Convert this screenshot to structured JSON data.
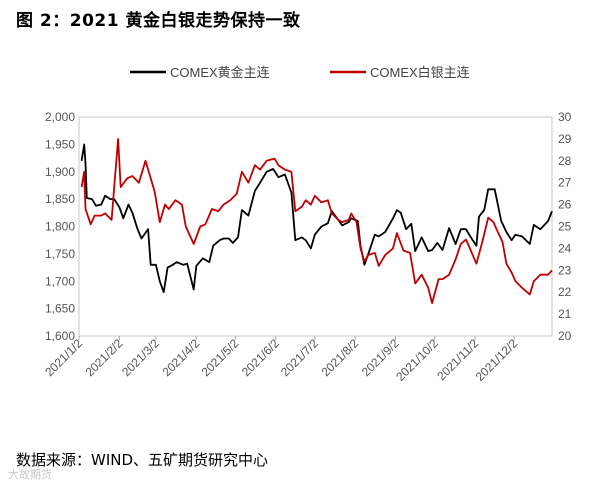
{
  "figure_title": "图 2：2021 黄金白银走势保持一致",
  "source_text": "数据来源：WIND、五矿期货研究中心",
  "watermark_text": "大故期货",
  "chart_data": {
    "type": "line",
    "title": "",
    "legend_position": "top",
    "grid": false,
    "x_tick_labels": [
      "2021/1/2",
      "2021/2/2",
      "2021/3/2",
      "2021/4/2",
      "2021/5/2",
      "2021/6/2",
      "2021/7/2",
      "2021/8/2",
      "2021/9/2",
      "2021/10/2",
      "2021/11/2",
      "2021/12/2"
    ],
    "x_range": [
      "2021-01-02",
      "2021-12-31"
    ],
    "y_left": {
      "ylim": [
        1600,
        2000
      ],
      "ticks": [
        "1,600",
        "1,650",
        "1,700",
        "1,750",
        "1,800",
        "1,850",
        "1,900",
        "1,950",
        "2,000"
      ]
    },
    "y_right": {
      "ylim": [
        20,
        30
      ],
      "ticks": [
        "20",
        "21",
        "22",
        "23",
        "24",
        "25",
        "26",
        "27",
        "28",
        "29",
        "30"
      ]
    },
    "series": [
      {
        "name": "COMEX黄金主连",
        "axis": "left",
        "color": "#000000",
        "points": [
          [
            "2021-01-04",
            1920
          ],
          [
            "2021-01-06",
            1950
          ],
          [
            "2021-01-07",
            1915
          ],
          [
            "2021-01-08",
            1852
          ],
          [
            "2021-01-12",
            1850
          ],
          [
            "2021-01-15",
            1838
          ],
          [
            "2021-01-19",
            1840
          ],
          [
            "2021-01-22",
            1856
          ],
          [
            "2021-01-26",
            1850
          ],
          [
            "2021-01-29",
            1850
          ],
          [
            "2021-02-02",
            1835
          ],
          [
            "2021-02-05",
            1815
          ],
          [
            "2021-02-09",
            1840
          ],
          [
            "2021-02-12",
            1825
          ],
          [
            "2021-02-16",
            1795
          ],
          [
            "2021-02-19",
            1778
          ],
          [
            "2021-02-24",
            1795
          ],
          [
            "2021-02-26",
            1730
          ],
          [
            "2021-03-02",
            1730
          ],
          [
            "2021-03-05",
            1700
          ],
          [
            "2021-03-08",
            1680
          ],
          [
            "2021-03-11",
            1725
          ],
          [
            "2021-03-15",
            1730
          ],
          [
            "2021-03-18",
            1735
          ],
          [
            "2021-03-23",
            1730
          ],
          [
            "2021-03-26",
            1732
          ],
          [
            "2021-03-31",
            1685
          ],
          [
            "2021-04-02",
            1728
          ],
          [
            "2021-04-07",
            1742
          ],
          [
            "2021-04-12",
            1735
          ],
          [
            "2021-04-15",
            1765
          ],
          [
            "2021-04-20",
            1775
          ],
          [
            "2021-04-23",
            1778
          ],
          [
            "2021-04-27",
            1778
          ],
          [
            "2021-04-30",
            1770
          ],
          [
            "2021-05-04",
            1780
          ],
          [
            "2021-05-07",
            1830
          ],
          [
            "2021-05-12",
            1820
          ],
          [
            "2021-05-17",
            1865
          ],
          [
            "2021-05-21",
            1880
          ],
          [
            "2021-05-26",
            1900
          ],
          [
            "2021-05-31",
            1905
          ],
          [
            "2021-06-04",
            1890
          ],
          [
            "2021-06-09",
            1895
          ],
          [
            "2021-06-14",
            1862
          ],
          [
            "2021-06-17",
            1775
          ],
          [
            "2021-06-22",
            1780
          ],
          [
            "2021-06-25",
            1775
          ],
          [
            "2021-06-29",
            1760
          ],
          [
            "2021-07-02",
            1785
          ],
          [
            "2021-07-07",
            1800
          ],
          [
            "2021-07-12",
            1806
          ],
          [
            "2021-07-15",
            1828
          ],
          [
            "2021-07-20",
            1812
          ],
          [
            "2021-07-23",
            1802
          ],
          [
            "2021-07-28",
            1808
          ],
          [
            "2021-07-30",
            1815
          ],
          [
            "2021-08-04",
            1810
          ],
          [
            "2021-08-06",
            1765
          ],
          [
            "2021-08-09",
            1730
          ],
          [
            "2021-08-12",
            1750
          ],
          [
            "2021-08-17",
            1785
          ],
          [
            "2021-08-20",
            1782
          ],
          [
            "2021-08-25",
            1790
          ],
          [
            "2021-08-31",
            1815
          ],
          [
            "2021-09-03",
            1830
          ],
          [
            "2021-09-06",
            1825
          ],
          [
            "2021-09-10",
            1795
          ],
          [
            "2021-09-14",
            1805
          ],
          [
            "2021-09-17",
            1755
          ],
          [
            "2021-09-22",
            1780
          ],
          [
            "2021-09-27",
            1755
          ],
          [
            "2021-09-30",
            1757
          ],
          [
            "2021-10-04",
            1770
          ],
          [
            "2021-10-08",
            1757
          ],
          [
            "2021-10-13",
            1797
          ],
          [
            "2021-10-18",
            1768
          ],
          [
            "2021-10-22",
            1795
          ],
          [
            "2021-10-26",
            1795
          ],
          [
            "2021-10-29",
            1783
          ],
          [
            "2021-11-03",
            1765
          ],
          [
            "2021-11-05",
            1818
          ],
          [
            "2021-11-09",
            1830
          ],
          [
            "2021-11-12",
            1868
          ],
          [
            "2021-11-17",
            1868
          ],
          [
            "2021-11-22",
            1810
          ],
          [
            "2021-11-26",
            1790
          ],
          [
            "2021-11-30",
            1775
          ],
          [
            "2021-12-03",
            1785
          ],
          [
            "2021-12-08",
            1782
          ],
          [
            "2021-12-14",
            1768
          ],
          [
            "2021-12-17",
            1803
          ],
          [
            "2021-12-22",
            1795
          ],
          [
            "2021-12-28",
            1810
          ],
          [
            "2021-12-31",
            1828
          ]
        ]
      },
      {
        "name": "COMEX白银主连",
        "axis": "right",
        "color": "#c00000",
        "points": [
          [
            "2021-01-04",
            26.8
          ],
          [
            "2021-01-06",
            27.5
          ],
          [
            "2021-01-07",
            25.8
          ],
          [
            "2021-01-11",
            25.1
          ],
          [
            "2021-01-14",
            25.5
          ],
          [
            "2021-01-19",
            25.5
          ],
          [
            "2021-01-22",
            25.6
          ],
          [
            "2021-01-27",
            25.3
          ],
          [
            "2021-01-29",
            26.8
          ],
          [
            "2021-02-01",
            29.0
          ],
          [
            "2021-02-03",
            26.8
          ],
          [
            "2021-02-08",
            27.2
          ],
          [
            "2021-02-12",
            27.3
          ],
          [
            "2021-02-17",
            27.0
          ],
          [
            "2021-02-22",
            28.0
          ],
          [
            "2021-02-25",
            27.4
          ],
          [
            "2021-03-01",
            26.6
          ],
          [
            "2021-03-05",
            25.2
          ],
          [
            "2021-03-09",
            26.0
          ],
          [
            "2021-03-12",
            25.8
          ],
          [
            "2021-03-17",
            26.2
          ],
          [
            "2021-03-22",
            26.0
          ],
          [
            "2021-03-25",
            25.0
          ],
          [
            "2021-03-31",
            24.2
          ],
          [
            "2021-04-05",
            25.0
          ],
          [
            "2021-04-09",
            25.1
          ],
          [
            "2021-04-14",
            25.8
          ],
          [
            "2021-04-19",
            25.7
          ],
          [
            "2021-04-23",
            26.0
          ],
          [
            "2021-04-28",
            26.2
          ],
          [
            "2021-05-03",
            26.5
          ],
          [
            "2021-05-07",
            27.5
          ],
          [
            "2021-05-12",
            27.0
          ],
          [
            "2021-05-17",
            27.8
          ],
          [
            "2021-05-21",
            27.6
          ],
          [
            "2021-05-26",
            28.0
          ],
          [
            "2021-06-01",
            28.1
          ],
          [
            "2021-06-04",
            27.8
          ],
          [
            "2021-06-09",
            27.6
          ],
          [
            "2021-06-14",
            27.5
          ],
          [
            "2021-06-17",
            25.7
          ],
          [
            "2021-06-22",
            25.9
          ],
          [
            "2021-06-25",
            26.2
          ],
          [
            "2021-06-29",
            26.0
          ],
          [
            "2021-07-02",
            26.4
          ],
          [
            "2021-07-07",
            26.1
          ],
          [
            "2021-07-12",
            26.2
          ],
          [
            "2021-07-15",
            25.6
          ],
          [
            "2021-07-20",
            25.3
          ],
          [
            "2021-07-23",
            25.2
          ],
          [
            "2021-07-28",
            25.3
          ],
          [
            "2021-07-30",
            25.6
          ],
          [
            "2021-08-03",
            25.2
          ],
          [
            "2021-08-06",
            24.0
          ],
          [
            "2021-08-09",
            23.4
          ],
          [
            "2021-08-12",
            23.7
          ],
          [
            "2021-08-17",
            23.8
          ],
          [
            "2021-08-20",
            23.2
          ],
          [
            "2021-08-25",
            23.7
          ],
          [
            "2021-08-31",
            24.0
          ],
          [
            "2021-09-03",
            24.7
          ],
          [
            "2021-09-08",
            23.9
          ],
          [
            "2021-09-13",
            23.8
          ],
          [
            "2021-09-17",
            22.4
          ],
          [
            "2021-09-22",
            22.8
          ],
          [
            "2021-09-27",
            22.2
          ],
          [
            "2021-09-30",
            21.5
          ],
          [
            "2021-10-05",
            22.6
          ],
          [
            "2021-10-08",
            22.6
          ],
          [
            "2021-10-13",
            22.8
          ],
          [
            "2021-10-18",
            23.5
          ],
          [
            "2021-10-22",
            24.2
          ],
          [
            "2021-10-26",
            24.4
          ],
          [
            "2021-10-29",
            24.0
          ],
          [
            "2021-11-03",
            23.3
          ],
          [
            "2021-11-08",
            24.4
          ],
          [
            "2021-11-12",
            25.4
          ],
          [
            "2021-11-16",
            25.2
          ],
          [
            "2021-11-19",
            24.8
          ],
          [
            "2021-11-23",
            24.3
          ],
          [
            "2021-11-26",
            23.3
          ],
          [
            "2021-11-30",
            22.9
          ],
          [
            "2021-12-03",
            22.5
          ],
          [
            "2021-12-08",
            22.2
          ],
          [
            "2021-12-14",
            21.9
          ],
          [
            "2021-12-17",
            22.5
          ],
          [
            "2021-12-22",
            22.8
          ],
          [
            "2021-12-28",
            22.8
          ],
          [
            "2021-12-31",
            23.0
          ]
        ]
      }
    ]
  }
}
